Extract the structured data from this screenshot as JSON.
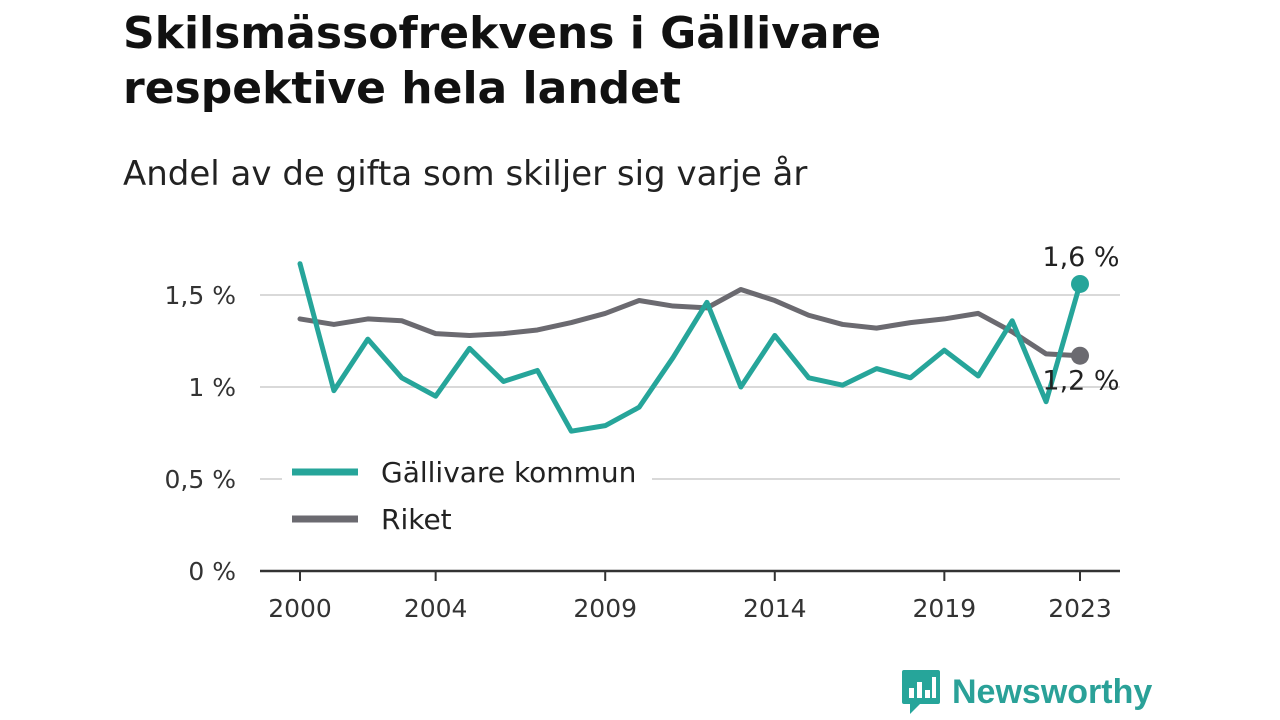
{
  "title": "Skilsmässofrekvens i Gällivare respektive hela landet",
  "subtitle": "Andel av de gifta som skiljer sig varje år",
  "brand": {
    "name": "Newsworthy",
    "icon": "newsworthy-logo-icon",
    "color": "#26a59a"
  },
  "chart_data": {
    "type": "line",
    "ylim": [
      0,
      1.7
    ],
    "y_ticks": [
      {
        "value": 0,
        "label": "0 %"
      },
      {
        "value": 0.5,
        "label": "0,5 %"
      },
      {
        "value": 1,
        "label": "1 %"
      },
      {
        "value": 1.5,
        "label": "1,5 %"
      }
    ],
    "x_ticks": [
      2000,
      2004,
      2009,
      2014,
      2019,
      2023
    ],
    "grid": true,
    "legend_position": "bottom-left",
    "x": [
      2000,
      2001,
      2002,
      2003,
      2004,
      2005,
      2006,
      2007,
      2008,
      2009,
      2010,
      2011,
      2012,
      2013,
      2014,
      2015,
      2016,
      2017,
      2018,
      2019,
      2020,
      2021,
      2022,
      2023
    ],
    "series": [
      {
        "name": "Gällivare kommun",
        "color": "#26a59a",
        "values": [
          1.67,
          0.98,
          1.26,
          1.05,
          0.95,
          1.21,
          1.03,
          1.09,
          0.76,
          0.79,
          0.89,
          1.16,
          1.46,
          1.0,
          1.28,
          1.05,
          1.01,
          1.1,
          1.05,
          1.2,
          1.06,
          1.36,
          0.92,
          1.56
        ],
        "end_label": "1,6 %"
      },
      {
        "name": "Riket",
        "color": "#6b6a70",
        "values": [
          1.37,
          1.34,
          1.37,
          1.36,
          1.29,
          1.28,
          1.29,
          1.31,
          1.35,
          1.4,
          1.47,
          1.44,
          1.43,
          1.53,
          1.47,
          1.39,
          1.34,
          1.32,
          1.35,
          1.37,
          1.4,
          1.3,
          1.18,
          1.17
        ],
        "end_label": "1,2 %"
      }
    ]
  }
}
